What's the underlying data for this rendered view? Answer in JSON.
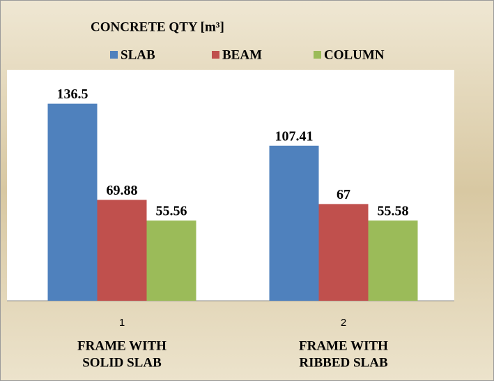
{
  "chart_data": {
    "type": "bar",
    "title": "CONCRETE QTY [m³]",
    "categories": [
      "1",
      "2"
    ],
    "annotations": [
      [
        "FRAME WITH",
        "SOLID SLAB"
      ],
      [
        "FRAME WITH",
        "RIBBED SLAB"
      ]
    ],
    "series": [
      {
        "name": "SLAB",
        "color": "#4f81bd",
        "values": [
          136.5,
          107.41
        ]
      },
      {
        "name": "BEAM",
        "color": "#c0504d",
        "values": [
          69.88,
          67
        ]
      },
      {
        "name": "COLUMN",
        "color": "#9bbb59",
        "values": [
          55.56,
          55.58
        ]
      }
    ],
    "ylim": [
      0,
      160
    ],
    "legend": "top"
  }
}
